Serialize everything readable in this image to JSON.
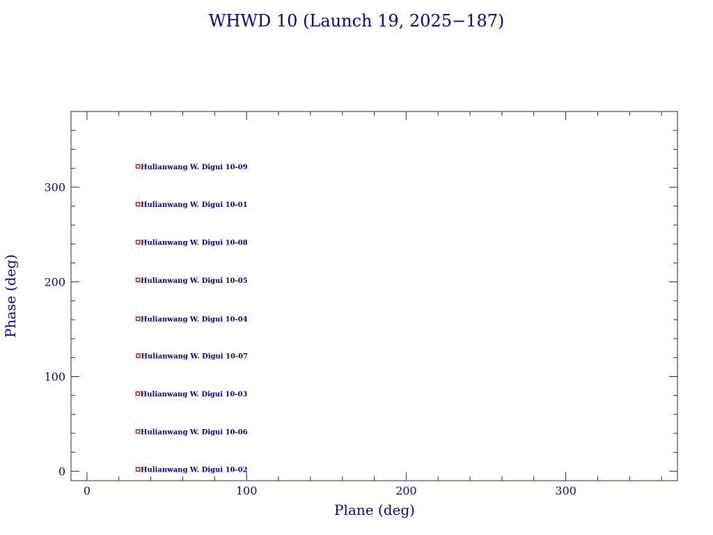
{
  "chart_data": {
    "type": "scatter",
    "title": "WHWD 10 (Launch 19, 2025−187)",
    "xlabel": "Plane (deg)",
    "ylabel": "Phase (deg)",
    "xlim": [
      -10,
      370
    ],
    "ylim": [
      -10,
      380
    ],
    "xticks": [
      0,
      100,
      200,
      300
    ],
    "yticks": [
      0,
      100,
      200,
      300
    ],
    "grid": false,
    "legend": "none",
    "colors": {
      "axis": "#1a1a8c",
      "text": "#00008b",
      "marker": "#d11010"
    },
    "points": [
      {
        "x": 31.9,
        "y": 322,
        "label": "Hulianwang W. Digui 10-09"
      },
      {
        "x": 31.9,
        "y": 282,
        "label": "Hulianwang W. Digui 10-01"
      },
      {
        "x": 31.9,
        "y": 242,
        "label": "Hulianwang W. Digui 10-08"
      },
      {
        "x": 31.9,
        "y": 202,
        "label": "Hulianwang W. Digui 10-05"
      },
      {
        "x": 31.9,
        "y": 161,
        "label": "Hulianwang W. Digui 10-04"
      },
      {
        "x": 32.1,
        "y": 122,
        "label": "Hulianwang W. Digui 10-07"
      },
      {
        "x": 31.8,
        "y": 82,
        "label": "Hulianwang W. Digui 10-03"
      },
      {
        "x": 31.9,
        "y": 42,
        "label": "Hulianwang W. Digui 10-06"
      },
      {
        "x": 31.9,
        "y": 2,
        "label": "Hulianwang W. Digui 10-02"
      }
    ]
  }
}
